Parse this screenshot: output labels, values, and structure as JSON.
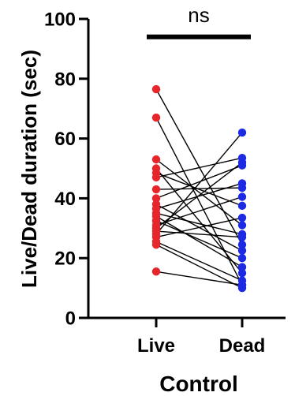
{
  "chart_data": {
    "type": "scatter",
    "subtype": "paired-points",
    "xlabel": "Control",
    "ylabel": "Live/Dead duration (sec)",
    "categories": [
      "Live",
      "Dead"
    ],
    "ylim": [
      0,
      100
    ],
    "yticks": [
      0,
      20,
      40,
      60,
      80,
      100
    ],
    "grid": false,
    "colors": {
      "Live": "#e8252b",
      "Dead": "#1c2be3"
    },
    "significance": {
      "label": "ns",
      "between": [
        "Live",
        "Dead"
      ],
      "y": 94
    },
    "pairs": [
      {
        "live": 76.5,
        "dead": 24.5
      },
      {
        "live": 67.0,
        "dead": 11.0
      },
      {
        "live": 53.0,
        "dead": 31.0
      },
      {
        "live": 50.0,
        "dead": 15.0
      },
      {
        "live": 48.5,
        "dead": 37.5
      },
      {
        "live": 47.0,
        "dead": 53.5
      },
      {
        "live": 43.0,
        "dead": 43.5
      },
      {
        "live": 40.0,
        "dead": 51.0
      },
      {
        "live": 38.0,
        "dead": 22.5
      },
      {
        "live": 36.5,
        "dead": 45.0
      },
      {
        "live": 35.0,
        "dead": 28.0
      },
      {
        "live": 34.0,
        "dead": 17.0
      },
      {
        "live": 32.5,
        "dead": 20.0
      },
      {
        "live": 31.0,
        "dead": 40.5
      },
      {
        "live": 30.0,
        "dead": 52.0
      },
      {
        "live": 29.0,
        "dead": 27.0
      },
      {
        "live": 28.0,
        "dead": 62.0
      },
      {
        "live": 27.0,
        "dead": 33.5
      },
      {
        "live": 25.5,
        "dead": 12.5
      },
      {
        "live": 24.5,
        "dead": 10.0
      },
      {
        "live": 15.5,
        "dead": 11.0
      }
    ]
  }
}
